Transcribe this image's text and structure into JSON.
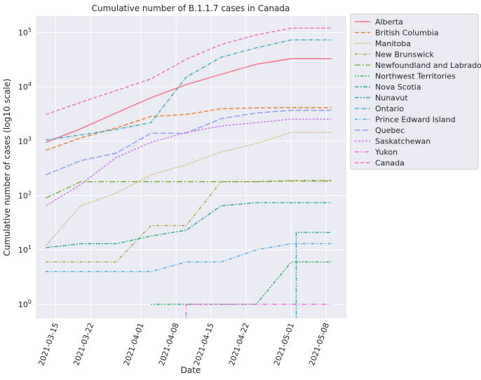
{
  "chart_data": {
    "type": "line",
    "title": "Cumulative number of B.1.1.7 cases in Canada",
    "xlabel": "Date",
    "ylabel": "Cumulative number of cases (log10 scale)",
    "y_scale": "log10",
    "ylim": [
      0.55,
      200000
    ],
    "xlim": [
      "2021-03-11",
      "2021-05-12"
    ],
    "grid": true,
    "legend_position": "outside-right",
    "x_ticks": [
      "2021-03-15",
      "2021-03-22",
      "2021-04-01",
      "2021-04-08",
      "2021-04-15",
      "2021-04-22",
      "2021-05-01",
      "2021-05-08"
    ],
    "y_ticks": [
      {
        "value": 1,
        "base": "10",
        "exp": "0"
      },
      {
        "value": 10,
        "base": "10",
        "exp": "1"
      },
      {
        "value": 100,
        "base": "10",
        "exp": "2"
      },
      {
        "value": 1000,
        "base": "10",
        "exp": "3"
      },
      {
        "value": 10000,
        "base": "10",
        "exp": "4"
      },
      {
        "value": 100000,
        "base": "10",
        "exp": "5"
      }
    ],
    "series": [
      {
        "name": "Alberta",
        "color": "#f77189",
        "dash": "",
        "x": [
          "2021-03-13",
          "2021-03-20",
          "2021-03-27",
          "2021-04-03",
          "2021-04-10",
          "2021-04-17",
          "2021-04-24",
          "2021-05-01",
          "2021-05-09"
        ],
        "y": [
          950,
          1700,
          3300,
          6300,
          11000,
          17000,
          26000,
          33000,
          33000
        ]
      },
      {
        "name": "British Columbia",
        "color": "#e98132",
        "dash": "6,3",
        "x": [
          "2021-03-13",
          "2021-03-20",
          "2021-03-27",
          "2021-04-03",
          "2021-04-10",
          "2021-04-17",
          "2021-04-24",
          "2021-05-01",
          "2021-05-09"
        ],
        "y": [
          680,
          1150,
          1750,
          2850,
          3100,
          3950,
          4100,
          4150,
          4150
        ]
      },
      {
        "name": "Manitoba",
        "color": "#bb9832",
        "dash": "1,2",
        "x": [
          "2021-03-13",
          "2021-03-20",
          "2021-03-27",
          "2021-04-03",
          "2021-04-10",
          "2021-04-17",
          "2021-04-24",
          "2021-05-01",
          "2021-05-09"
        ],
        "y": [
          12,
          65,
          110,
          240,
          370,
          630,
          900,
          1450,
          1450
        ]
      },
      {
        "name": "New Brunswick",
        "color": "#a3a033",
        "dash": "4,2,1,2,1,2",
        "x": [
          "2021-03-13",
          "2021-03-20",
          "2021-03-27",
          "2021-04-03",
          "2021-04-10",
          "2021-04-17",
          "2021-04-24",
          "2021-05-01",
          "2021-05-09"
        ],
        "y": [
          6,
          6,
          6,
          28,
          28,
          180,
          180,
          190,
          190
        ]
      },
      {
        "name": "Newfoundland and Labrador",
        "color": "#7fad32",
        "dash": "8,3,2,3",
        "x": [
          "2021-03-13",
          "2021-03-20",
          "2021-03-27",
          "2021-04-03",
          "2021-04-10",
          "2021-04-17",
          "2021-04-24",
          "2021-05-01",
          "2021-05-09"
        ],
        "y": [
          90,
          180,
          180,
          180,
          180,
          180,
          180,
          185,
          185
        ]
      },
      {
        "name": "Northwest Territories",
        "color": "#32b165",
        "dash": "2,2,2,2,5,2",
        "x": [
          "2021-04-03",
          "2021-04-10",
          "2021-04-17",
          "2021-04-24",
          "2021-05-01",
          "2021-05-09"
        ],
        "y": [
          1,
          1,
          1,
          1,
          6,
          6
        ]
      },
      {
        "name": "Nova Scotia",
        "color": "#35ac96",
        "dash": "6,2,2,2",
        "x": [
          "2021-03-13",
          "2021-03-20",
          "2021-03-27",
          "2021-04-03",
          "2021-04-10",
          "2021-04-17",
          "2021-04-24",
          "2021-05-01",
          "2021-05-09"
        ],
        "y": [
          11,
          13,
          13,
          18,
          23,
          65,
          74,
          74,
          74
        ]
      },
      {
        "name": "Nunavut",
        "color": "#37a9ae",
        "dash": "6,2,2,2,2,2",
        "x": [
          "2021-05-02",
          "2021-05-02",
          "2021-05-09"
        ],
        "y": [
          0.4,
          21,
          21
        ]
      },
      {
        "name": "Ontario",
        "color": "#38a7c0",
        "dash": "5,2,1,2",
        "x": [
          "2021-03-13",
          "2021-03-20",
          "2021-03-27",
          "2021-04-03",
          "2021-04-10",
          "2021-04-17",
          "2021-04-24",
          "2021-05-01",
          "2021-05-09"
        ],
        "y": [
          1050,
          1300,
          1650,
          2200,
          15000,
          35000,
          52000,
          73000,
          73000
        ]
      },
      {
        "name": "Prince Edward Island",
        "color": "#3ba3ec",
        "dash": "4,2,1,2,1,2",
        "x": [
          "2021-03-13",
          "2021-03-20",
          "2021-03-27",
          "2021-04-03",
          "2021-04-10",
          "2021-04-17",
          "2021-04-24",
          "2021-05-01",
          "2021-05-09"
        ],
        "y": [
          4,
          4,
          4,
          4,
          6,
          6,
          10,
          13,
          13
        ]
      },
      {
        "name": "Quebec",
        "color": "#8a9ef4",
        "dash": "8,3",
        "x": [
          "2021-03-13",
          "2021-03-20",
          "2021-03-27",
          "2021-04-03",
          "2021-04-10",
          "2021-04-17",
          "2021-04-24",
          "2021-05-01",
          "2021-05-09"
        ],
        "y": [
          240,
          440,
          600,
          1400,
          1400,
          2600,
          3300,
          3700,
          3700
        ]
      },
      {
        "name": "Saskatchewan",
        "color": "#cc7af4",
        "dash": "3,2",
        "x": [
          "2021-03-13",
          "2021-03-20",
          "2021-03-27",
          "2021-04-03",
          "2021-04-10",
          "2021-04-17",
          "2021-04-24",
          "2021-05-01",
          "2021-05-09"
        ],
        "y": [
          65,
          160,
          500,
          950,
          1450,
          1900,
          2200,
          2550,
          2550
        ]
      },
      {
        "name": "Yukon",
        "color": "#f45fe1",
        "dash": "6,2,1,2,1,2",
        "x": [
          "2021-04-10",
          "2021-04-10",
          "2021-04-17",
          "2021-04-24",
          "2021-05-01",
          "2021-05-09"
        ],
        "y": [
          0.4,
          1,
          1,
          1,
          1,
          1
        ]
      },
      {
        "name": "Canada",
        "color": "#f66bb8",
        "dash": "5,3",
        "x": [
          "2021-03-13",
          "2021-03-20",
          "2021-03-27",
          "2021-04-03",
          "2021-04-10",
          "2021-04-17",
          "2021-04-24",
          "2021-05-01",
          "2021-05-09"
        ],
        "y": [
          3100,
          5200,
          8500,
          14000,
          32000,
          60000,
          90000,
          120000,
          120000
        ]
      }
    ]
  }
}
